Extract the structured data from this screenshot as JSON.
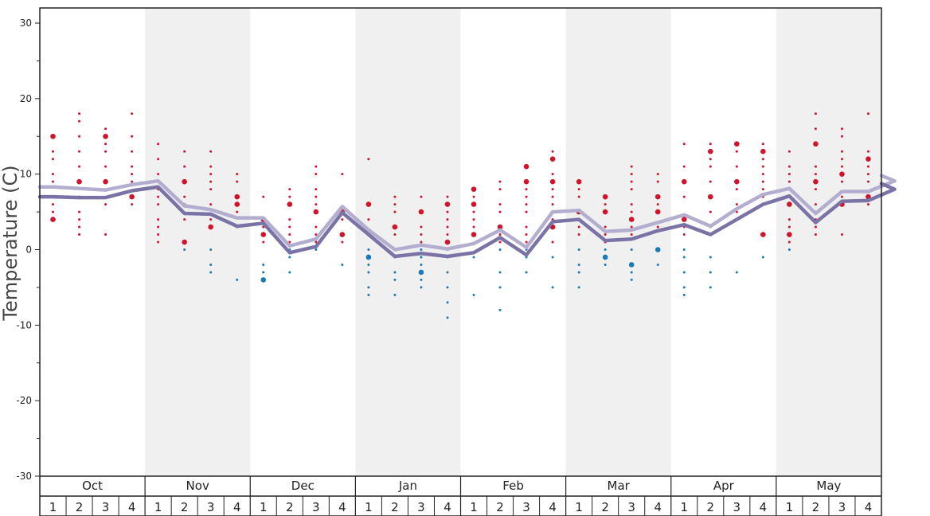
{
  "chart_data": {
    "type": "line",
    "ylabel": "Temperature (C)",
    "ylim": [
      -30,
      30
    ],
    "y_ticks": [
      "30",
      "20",
      "10",
      "0",
      "-10",
      "-20",
      "-30"
    ],
    "months": [
      "Oct",
      "Nov",
      "Dec",
      "Jan",
      "Feb",
      "Mar",
      "Apr",
      "May"
    ],
    "weeks": [
      "1",
      "2",
      "3",
      "4"
    ],
    "grid": false,
    "colors": {
      "line_light": "#b3aed0",
      "line_dark": "#7a73a6",
      "warm_dot": "#d0142c",
      "cold_dot": "#1a7ab5",
      "band": "#f0f0f0"
    },
    "series": [
      {
        "values": [
          8.3,
          8.1,
          7.9,
          8.6,
          9.1,
          5.8,
          5.3,
          4.2,
          4.2,
          0.5,
          1.4,
          5.7,
          2.6,
          0.0,
          0.6,
          0.1,
          0.8,
          2.6,
          0.3,
          5.0,
          5.2,
          2.4,
          2.6,
          3.6,
          4.6,
          3.1,
          5.4,
          7.3,
          8.1,
          4.8,
          7.7,
          7.7,
          9.1
        ]
      },
      {
        "values": [
          7.0,
          6.9,
          6.9,
          7.8,
          8.3,
          4.8,
          4.7,
          3.1,
          3.5,
          -0.4,
          0.4,
          4.9,
          2.0,
          -0.9,
          -0.5,
          -0.9,
          -0.4,
          1.6,
          -0.7,
          3.7,
          4.0,
          1.2,
          1.4,
          2.5,
          3.3,
          2.0,
          4.0,
          6.0,
          7.1,
          3.6,
          6.4,
          6.5,
          8.0
        ]
      }
    ],
    "points": [
      {
        "w": 0,
        "t": [
          15,
          13,
          12,
          10,
          9,
          7,
          6,
          5,
          4
        ],
        "big": [
          15,
          4
        ]
      },
      {
        "w": 1,
        "t": [
          18,
          17,
          15,
          13,
          11,
          9,
          7,
          5,
          4,
          3,
          2
        ],
        "big": [
          9
        ]
      },
      {
        "w": 2,
        "t": [
          16,
          15,
          14,
          13,
          11,
          9,
          6,
          2
        ],
        "big": [
          15,
          9
        ]
      },
      {
        "w": 3,
        "t": [
          18,
          15,
          13,
          11,
          10,
          9,
          7,
          6
        ],
        "big": [
          7
        ]
      },
      {
        "w": 4,
        "t": [
          14,
          12,
          10,
          8,
          7,
          6,
          4,
          3,
          2,
          1
        ],
        "big": []
      },
      {
        "w": 5,
        "t": [
          13,
          11,
          9,
          7,
          6,
          4,
          1,
          0
        ],
        "big": [
          9,
          1
        ]
      },
      {
        "w": 6,
        "t": [
          13,
          11,
          10,
          9,
          8,
          6,
          4,
          3,
          0,
          -2,
          -3
        ],
        "big": [
          3
        ]
      },
      {
        "w": 7,
        "t": [
          10,
          9,
          7,
          6,
          5,
          3,
          -4
        ],
        "big": [
          7,
          6
        ]
      },
      {
        "w": 8,
        "t": [
          7,
          4,
          3,
          2,
          1,
          -2,
          -3,
          -4
        ],
        "big": [
          4,
          2,
          -4
        ]
      },
      {
        "w": 9,
        "t": [
          8,
          7,
          6,
          4,
          3,
          2,
          1,
          0,
          -1,
          -3
        ],
        "big": [
          6
        ]
      },
      {
        "w": 10,
        "t": [
          11,
          10,
          8,
          7,
          6,
          5,
          3,
          2,
          1,
          0
        ],
        "big": [
          5
        ]
      },
      {
        "w": 11,
        "t": [
          10,
          5,
          4,
          2,
          1,
          -2
        ],
        "big": [
          5,
          2
        ]
      },
      {
        "w": 12,
        "t": [
          12,
          6,
          4,
          2,
          0,
          -1,
          -2,
          -3,
          -5,
          -6
        ],
        "big": [
          6,
          -1
        ]
      },
      {
        "w": 13,
        "t": [
          7,
          6,
          5,
          3,
          2,
          0,
          -1,
          -3,
          -4,
          -6
        ],
        "big": [
          3
        ]
      },
      {
        "w": 14,
        "t": [
          7,
          5,
          3,
          2,
          1,
          0,
          -1,
          -2,
          -3,
          -4,
          -5
        ],
        "big": [
          5,
          -3
        ]
      },
      {
        "w": 15,
        "t": [
          7,
          6,
          5,
          4,
          3,
          2,
          1,
          0,
          -1,
          -3,
          -5,
          -7,
          -9
        ],
        "big": [
          6,
          1
        ]
      },
      {
        "w": 16,
        "t": [
          8,
          7,
          6,
          5,
          4,
          3,
          2,
          -1,
          -6
        ],
        "big": [
          8,
          6,
          2
        ]
      },
      {
        "w": 17,
        "t": [
          9,
          8,
          6,
          5,
          3,
          2,
          1,
          0,
          -3,
          -5,
          -8
        ],
        "big": [
          3
        ]
      },
      {
        "w": 18,
        "t": [
          11,
          9,
          8,
          7,
          6,
          5,
          3,
          2,
          1,
          0,
          -1,
          -3
        ],
        "big": [
          11,
          9
        ]
      },
      {
        "w": 19,
        "t": [
          13,
          12,
          10,
          9,
          8,
          7,
          6,
          5,
          4,
          3,
          1,
          -1,
          -5
        ],
        "big": [
          12,
          9,
          3
        ]
      },
      {
        "w": 20,
        "t": [
          9,
          8,
          7,
          5,
          4,
          3,
          2,
          0,
          -2,
          -3,
          -5
        ],
        "big": [
          9,
          5
        ]
      },
      {
        "w": 21,
        "t": [
          7,
          6,
          5,
          3,
          2,
          1,
          0,
          -1,
          -2
        ],
        "big": [
          7,
          5,
          -1
        ]
      },
      {
        "w": 22,
        "t": [
          11,
          10,
          9,
          8,
          6,
          5,
          4,
          3,
          2,
          0,
          -2,
          -3,
          -4
        ],
        "big": [
          4,
          -2
        ]
      },
      {
        "w": 23,
        "t": [
          10,
          9,
          7,
          6,
          5,
          3,
          0,
          -2
        ],
        "big": [
          7,
          5,
          0
        ]
      },
      {
        "w": 24,
        "t": [
          14,
          11,
          9,
          7,
          4,
          3,
          2,
          0,
          -1,
          -3,
          -5,
          -6
        ],
        "big": [
          9,
          4
        ]
      },
      {
        "w": 25,
        "t": [
          14,
          13,
          12,
          11,
          9,
          7,
          5,
          3,
          2,
          -1,
          -3,
          -5
        ],
        "big": [
          13,
          7
        ]
      },
      {
        "w": 26,
        "t": [
          14,
          13,
          11,
          9,
          8,
          6,
          5,
          4,
          -3
        ],
        "big": [
          14,
          9
        ]
      },
      {
        "w": 27,
        "t": [
          14,
          13,
          12,
          11,
          10,
          9,
          8,
          7,
          6,
          2,
          -1
        ],
        "big": [
          13,
          2
        ]
      },
      {
        "w": 28,
        "t": [
          13,
          11,
          10,
          9,
          7,
          6,
          4,
          3,
          2,
          1,
          0
        ],
        "big": [
          6,
          2
        ]
      },
      {
        "w": 29,
        "t": [
          18,
          16,
          14,
          11,
          10,
          9,
          8,
          6,
          5,
          4,
          3,
          2
        ],
        "big": [
          14,
          9
        ]
      },
      {
        "w": 30,
        "t": [
          16,
          15,
          13,
          12,
          11,
          10,
          9,
          7,
          6,
          2
        ],
        "big": [
          10,
          6
        ]
      },
      {
        "w": 31,
        "t": [
          18,
          13,
          12,
          11,
          10,
          9,
          7,
          6
        ],
        "big": [
          12,
          7
        ]
      }
    ]
  }
}
